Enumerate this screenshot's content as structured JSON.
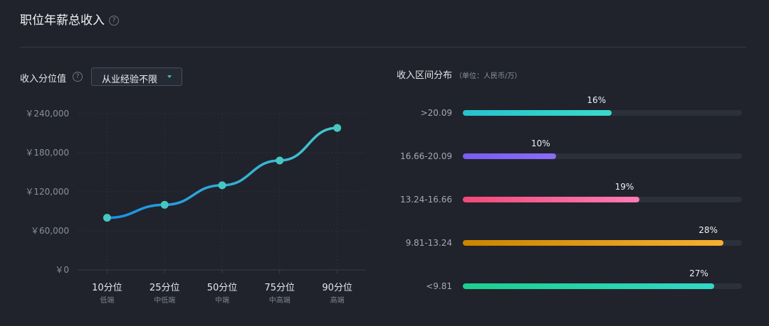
{
  "header": {
    "title": "职位年薪总收入",
    "help_icon": "question-circle-icon"
  },
  "percentile_section": {
    "label": "收入分位值",
    "dropdown": {
      "selected": "从业经验不限"
    }
  },
  "distribution_section": {
    "title": "收入区间分布",
    "unit": "（单位：人民币/万）"
  },
  "colors": {
    "background": "#20232c",
    "line_start": "#1a8fe6",
    "line_end": "#45c7c9",
    "marker": "#46c7c2",
    "dropdown_caret": "#34c6a6"
  },
  "chart_data": [
    {
      "type": "line",
      "categories": [
        "10分位",
        "25分位",
        "50分位",
        "75分位",
        "90分位"
      ],
      "sublabels": [
        "低端",
        "中低端",
        "中端",
        "中高端",
        "高端"
      ],
      "values": [
        80000,
        100000,
        130000,
        168000,
        218000
      ],
      "yticks": [
        "￥240,000",
        "￥180,000",
        "￥120,000",
        "￥60,000",
        "￥0"
      ],
      "ylim": [
        0,
        240000
      ],
      "grid": true
    },
    {
      "type": "bar",
      "orientation": "horizontal",
      "categories": [
        ">20.09",
        "16.66-20.09",
        "13.24-16.66",
        "9.81-13.24",
        "<9.81"
      ],
      "values": [
        16,
        10,
        19,
        28,
        27
      ],
      "labels": [
        "16%",
        "10%",
        "19%",
        "28%",
        "27%"
      ],
      "xlim": [
        0,
        30
      ],
      "colors": [
        [
          "#27c1cf",
          "#3ad9c9"
        ],
        [
          "#7a5cf0",
          "#8b6cf5"
        ],
        [
          "#f24a77",
          "#ff7bb5"
        ],
        [
          "#c98400",
          "#f6b030"
        ],
        [
          "#1ccf8e",
          "#33d7c6"
        ]
      ]
    }
  ]
}
